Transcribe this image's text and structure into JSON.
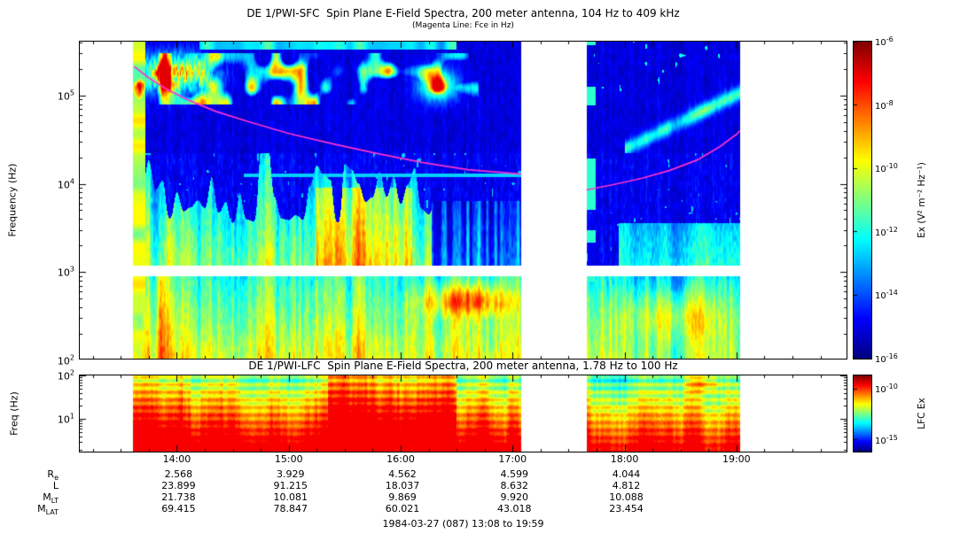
{
  "colors": {
    "background": "#ffffff",
    "axis": "#000000",
    "fce_line": "#ff33cc"
  },
  "panel_sfc": {
    "title": "DE 1/PWI-SFC  Spin Plane E-Field Spectra, 200 meter antenna, 104 Hz to 409 kHz",
    "subtitle": "(Magenta Line: Fce in Hz)",
    "ylabel": "Frequency (Hz)",
    "yticks_exp": [
      5,
      4,
      3,
      2
    ],
    "colorbar": {
      "label": "Ex (V² m⁻² Hz⁻¹)",
      "range_exp": [
        -6,
        -16
      ],
      "ticks_exp": [
        -6,
        -8,
        -10,
        -12,
        -14,
        -16
      ]
    }
  },
  "panel_lfc": {
    "title": "DE 1/PWI-LFC  Spin Plane E-Field Spectra, 200 meter antenna, 1.78 Hz to 100 Hz",
    "ylabel": "Freq (Hz)",
    "yticks_exp": [
      2,
      1
    ],
    "colorbar": {
      "label": "LFC Ex",
      "ticks": [
        {
          "exp": -10,
          "frac": 0.18
        },
        {
          "exp": -15,
          "frac": 0.85
        }
      ]
    }
  },
  "xaxis": {
    "range_hours": [
      13.1333,
      19.9833
    ],
    "tick_hours": [
      14,
      15,
      16,
      17,
      18,
      19
    ],
    "tick_labels": [
      "14:00",
      "15:00",
      "16:00",
      "17:00",
      "18:00",
      "19:00"
    ]
  },
  "ephemeris": {
    "col_hours": [
      14,
      15,
      16,
      17,
      18
    ],
    "rows": [
      {
        "label": "R",
        "sub": "e",
        "values": [
          "2.568",
          "3.929",
          "4.562",
          "4.599",
          "4.044"
        ]
      },
      {
        "label": "L",
        "sub": "",
        "values": [
          "23.899",
          "91.215",
          "18.037",
          "8.632",
          "4.812"
        ]
      },
      {
        "label": "M",
        "sub": "LT",
        "values": [
          "21.738",
          "10.081",
          "9.869",
          "9.920",
          "10.088"
        ]
      },
      {
        "label": "M",
        "sub": "LAT",
        "values": [
          "69.415",
          "78.847",
          "60.021",
          "43.018",
          "23.454"
        ]
      }
    ]
  },
  "footer": "1984-03-27 (087) 13:08 to 19:59",
  "chart_data": {
    "type": "heatmap",
    "subtype": "time-frequency spectrogram",
    "panels": [
      {
        "id": "sfc",
        "title": "DE 1/PWI-SFC  Spin Plane E-Field Spectra, 200 meter antenna, 104 Hz to 409 kHz",
        "ylabel": "Frequency (Hz)",
        "colorbar_label": "Ex (V² m⁻² Hz⁻¹)",
        "x_hours_range": [
          13.1333,
          19.9833
        ],
        "freq_hz_range": [
          104,
          409000
        ],
        "power_range": [
          "1e-16",
          "1e-6"
        ],
        "data_segments_hours": [
          [
            13.61,
            17.08
          ],
          [
            17.66,
            19.03
          ]
        ],
        "blank_band_log10hz": [
          2.95,
          3.07
        ],
        "fce_line_log10hz": {
          "left": [
            [
              13.62,
              5.33
            ],
            [
              13.75,
              5.2
            ],
            [
              13.9,
              5.08
            ],
            [
              14.1,
              4.95
            ],
            [
              14.35,
              4.82
            ],
            [
              14.65,
              4.7
            ],
            [
              15.0,
              4.57
            ],
            [
              15.4,
              4.45
            ],
            [
              15.8,
              4.34
            ],
            [
              16.2,
              4.24
            ],
            [
              16.6,
              4.16
            ],
            [
              17.08,
              4.11
            ]
          ],
          "right": [
            [
              17.66,
              3.93
            ],
            [
              17.9,
              3.99
            ],
            [
              18.15,
              4.06
            ],
            [
              18.4,
              4.15
            ],
            [
              18.65,
              4.27
            ],
            [
              18.85,
              4.42
            ],
            [
              19.0,
              4.56
            ],
            [
              19.03,
              4.6
            ]
          ]
        }
      },
      {
        "id": "lfc",
        "title": "DE 1/PWI-LFC  Spin Plane E-Field Spectra, 200 meter antenna, 1.78 Hz to 100 Hz",
        "ylabel": "Freq (Hz)",
        "colorbar_label": "LFC Ex",
        "x_hours_range": [
          13.1333,
          19.9833
        ],
        "freq_hz_range": [
          1.78,
          100
        ],
        "data_segments_hours": [
          [
            13.61,
            17.08
          ],
          [
            17.66,
            19.03
          ]
        ]
      }
    ]
  }
}
